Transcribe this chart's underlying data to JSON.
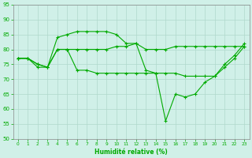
{
  "xlabel": "Humidité relative (%)",
  "background_color": "#d0f0e8",
  "grid_color": "#b0d8cc",
  "line_color": "#00aa00",
  "xlim_min": -0.5,
  "xlim_max": 23.5,
  "ylim_min": 50,
  "ylim_max": 95,
  "yticks": [
    50,
    55,
    60,
    65,
    70,
    75,
    80,
    85,
    90,
    95
  ],
  "xticks": [
    0,
    1,
    2,
    3,
    4,
    5,
    6,
    7,
    8,
    9,
    10,
    11,
    12,
    13,
    14,
    15,
    16,
    17,
    18,
    19,
    20,
    21,
    22,
    23
  ],
  "line_top": [
    77,
    77,
    75,
    74,
    84,
    85,
    86,
    86,
    86,
    86,
    85,
    82,
    82,
    80,
    80,
    80,
    81,
    81,
    81,
    81,
    81,
    81,
    81,
    81
  ],
  "line_mid": [
    77,
    77,
    75,
    74,
    80,
    80,
    80,
    80,
    80,
    80,
    81,
    81,
    82,
    73,
    72,
    72,
    72,
    71,
    71,
    71,
    71,
    75,
    78,
    82
  ],
  "line_bot": [
    77,
    77,
    74,
    74,
    80,
    80,
    73,
    73,
    72,
    72,
    72,
    72,
    72,
    72,
    72,
    56,
    65,
    64,
    65,
    69,
    71,
    74,
    77,
    81
  ]
}
